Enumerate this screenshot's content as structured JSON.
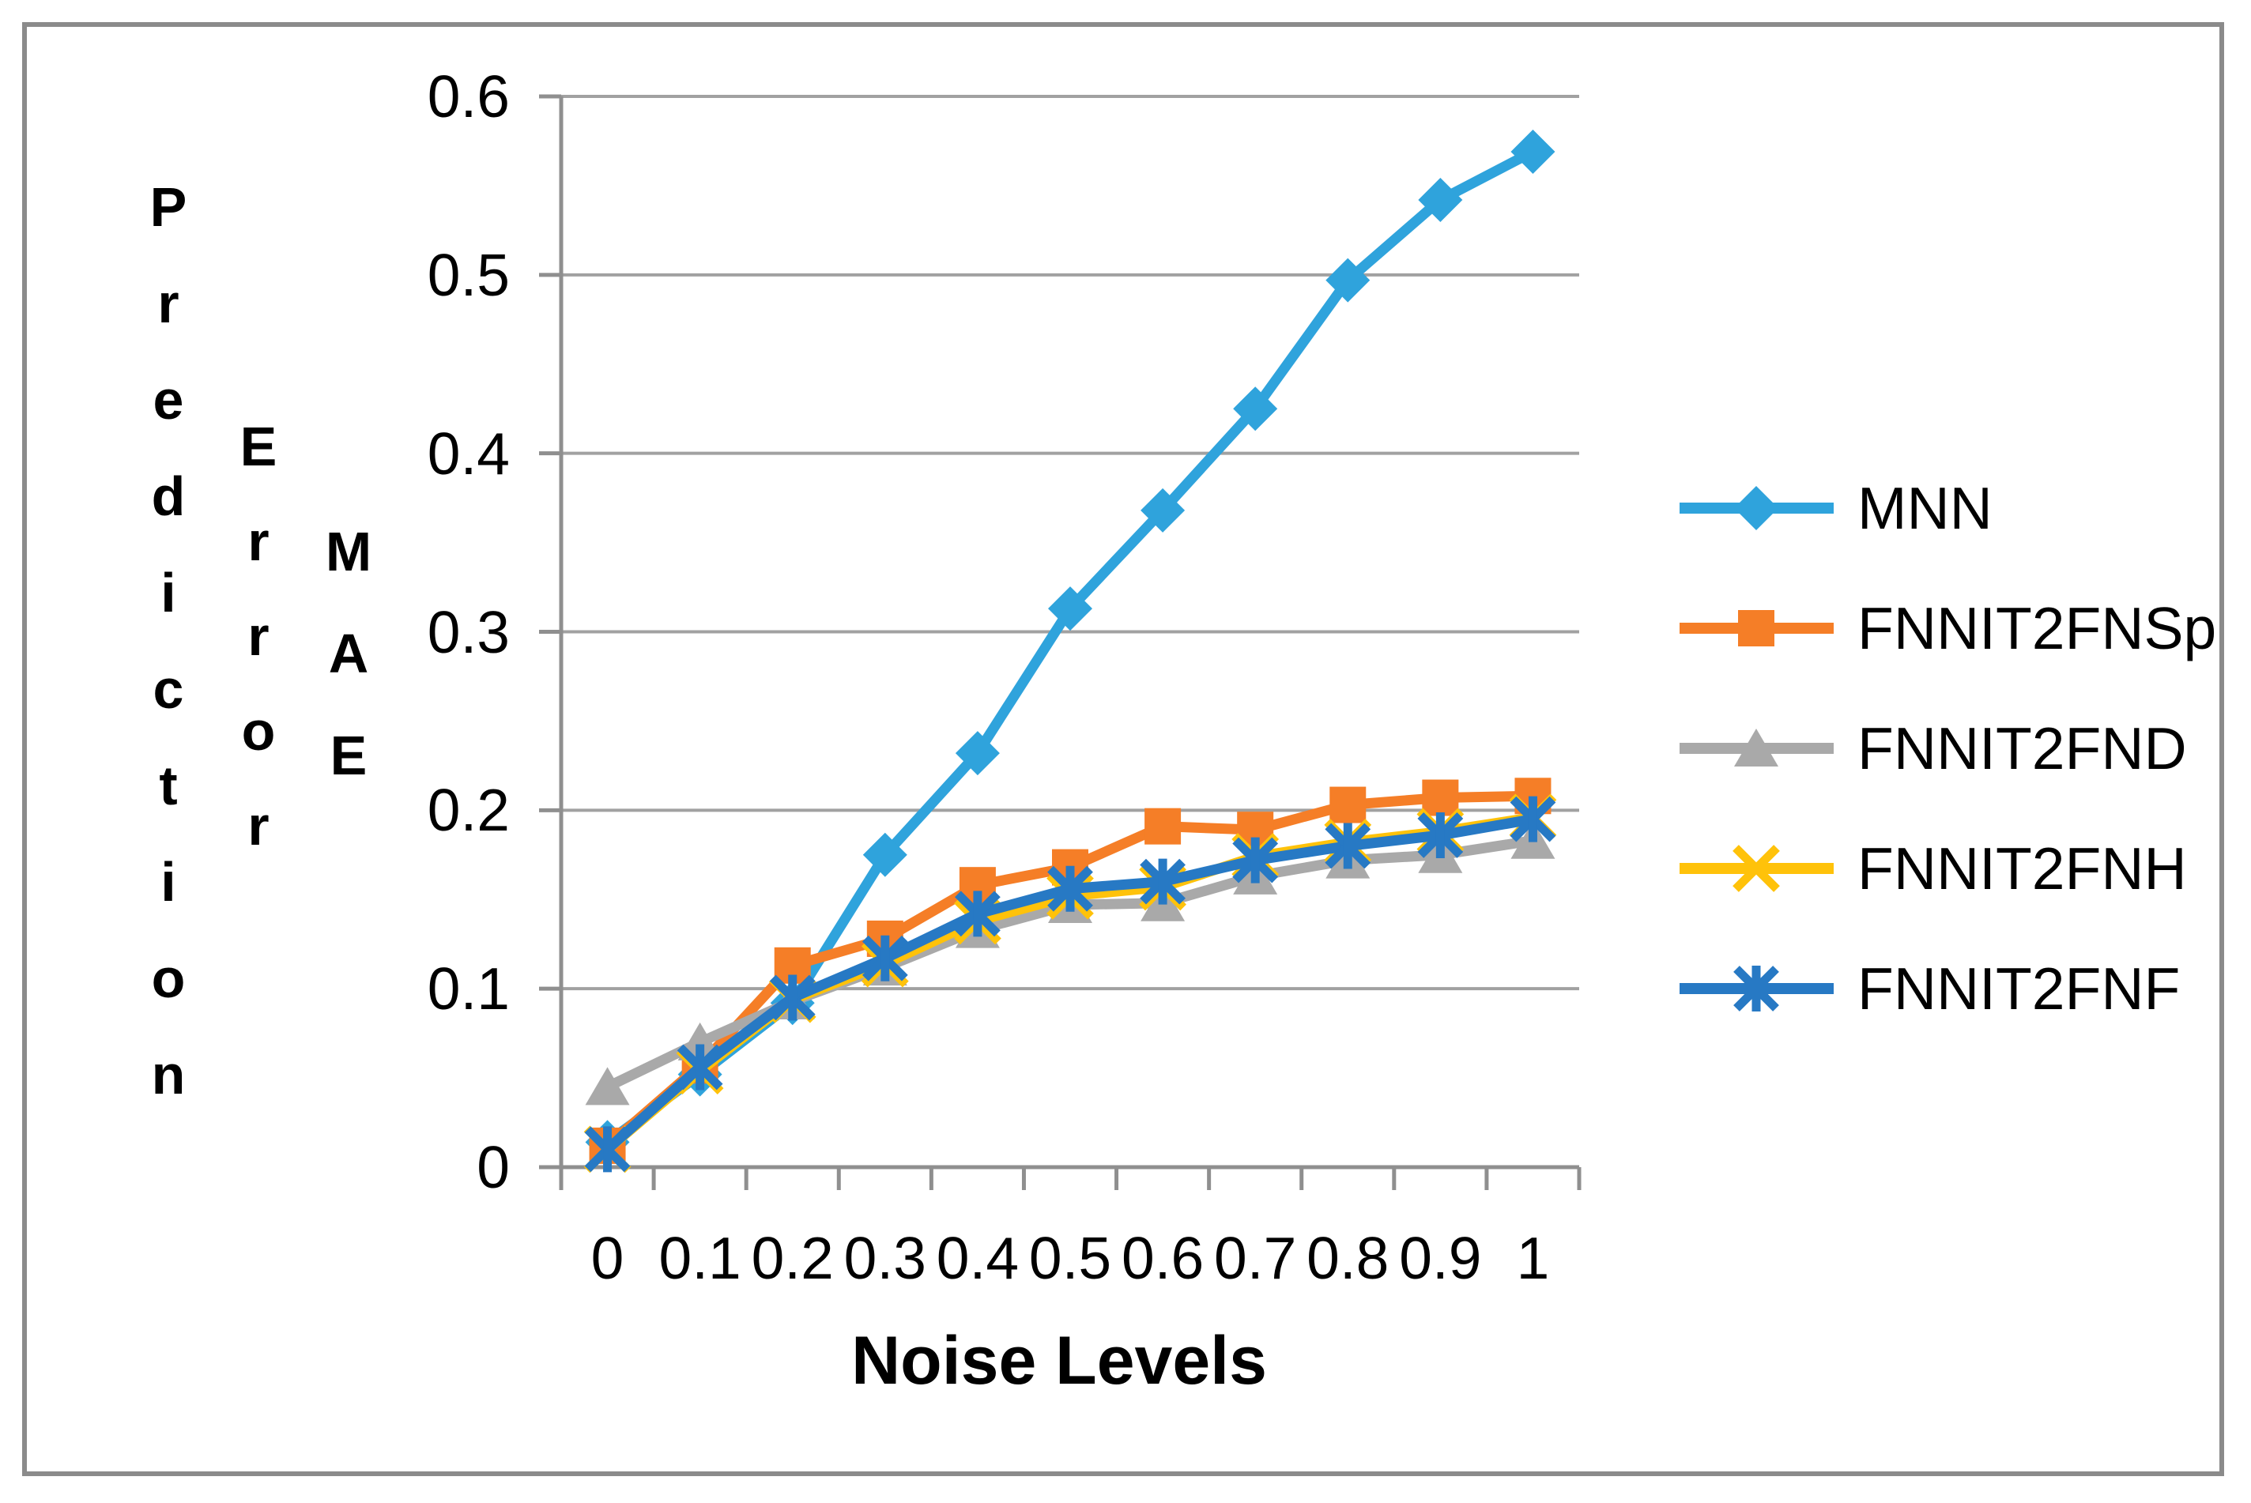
{
  "figure": {
    "background": "#ffffff",
    "border_color": "#8B8B8B"
  },
  "chart_data": {
    "type": "line",
    "title": "",
    "xlabel": "Noise Levels",
    "ylabel_words": [
      "Prediction",
      "Error",
      "MAE"
    ],
    "categories": [
      0,
      0.1,
      0.2,
      0.3,
      0.4,
      0.5,
      0.6,
      0.7,
      0.8,
      0.9,
      1
    ],
    "x_tick_labels": [
      "0",
      "0.1",
      "0.2",
      "0.3",
      "0.4",
      "0.5",
      "0.6",
      "0.7",
      "0.8",
      "0.9",
      "1"
    ],
    "y_tick_labels": [
      "0",
      "0.1",
      "0.2",
      "0.3",
      "0.4",
      "0.5",
      "0.6"
    ],
    "ylim": [
      0,
      0.6
    ],
    "y_tick_step": 0.1,
    "grid": true,
    "grid_color": "#A1A1A1",
    "axis_color": "#8F8F8F",
    "legend_position": "right",
    "series": [
      {
        "name": "MNN",
        "color": "#2FA3DC",
        "marker": "diamond",
        "values": [
          0.014,
          0.052,
          0.092,
          0.175,
          0.232,
          0.313,
          0.368,
          0.425,
          0.497,
          0.542,
          0.569
        ]
      },
      {
        "name": "FNNIT2FNSp",
        "color": "#F57E27",
        "marker": "square",
        "values": [
          0.012,
          0.057,
          0.113,
          0.128,
          0.158,
          0.168,
          0.191,
          0.189,
          0.203,
          0.207,
          0.208
        ]
      },
      {
        "name": "FNNIT2FND",
        "color": "#A9A9A9",
        "marker": "triangle",
        "values": [
          0.045,
          0.07,
          0.093,
          0.112,
          0.133,
          0.147,
          0.148,
          0.163,
          0.172,
          0.175,
          0.183
        ]
      },
      {
        "name": "FNNIT2FNH",
        "color": "#FFC20A",
        "marker": "x",
        "values": [
          0.01,
          0.054,
          0.094,
          0.114,
          0.138,
          0.152,
          0.157,
          0.174,
          0.182,
          0.188,
          0.196
        ]
      },
      {
        "name": "FNNIT2FNF",
        "color": "#2779C4",
        "marker": "asterisk",
        "values": [
          0.01,
          0.056,
          0.095,
          0.117,
          0.142,
          0.156,
          0.16,
          0.172,
          0.18,
          0.186,
          0.195
        ]
      }
    ]
  }
}
